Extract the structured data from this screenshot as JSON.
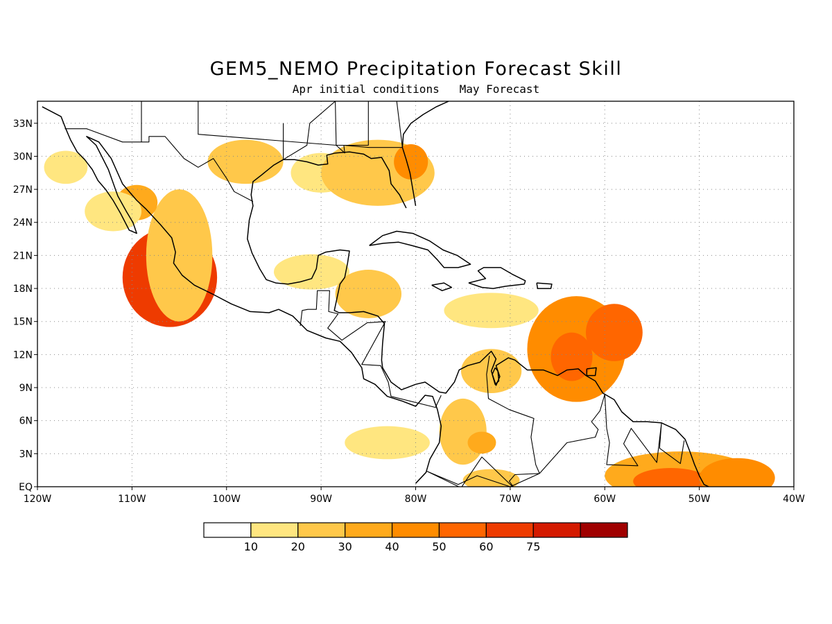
{
  "title": "GEM5_NEMO Precipitation Forecast Skill",
  "subtitle": "Apr initial conditions   May Forecast",
  "map": {
    "lon_range": [
      -120,
      -40
    ],
    "lat_range": [
      0,
      35
    ],
    "grid": "dotted",
    "lon_ticks": [
      "120W",
      "110W",
      "100W",
      "90W",
      "80W",
      "70W",
      "60W",
      "50W",
      "40W"
    ],
    "lat_ticks": [
      "EQ",
      "3N",
      "6N",
      "9N",
      "12N",
      "15N",
      "18N",
      "21N",
      "24N",
      "27N",
      "30N",
      "33N"
    ]
  },
  "colorbar": {
    "colors": [
      "#ffffff",
      "#ffe680",
      "#ffc84a",
      "#ffaa1c",
      "#ff8c00",
      "#ff6600",
      "#ee3b00",
      "#d41a00",
      "#a00000"
    ],
    "labels": [
      "10",
      "20",
      "30",
      "40",
      "50",
      "60",
      "75"
    ]
  },
  "skill_regions": [
    {
      "lon": -106.5,
      "lat": 19.5,
      "rx": 4.0,
      "ry": 3.2,
      "level": "75"
    },
    {
      "lon": -106.0,
      "lat": 19.0,
      "rx": 5.0,
      "ry": 4.5,
      "level": "60"
    },
    {
      "lon": -105.0,
      "lat": 21.0,
      "rx": 3.5,
      "ry": 6.0,
      "level": "20"
    },
    {
      "lon": -109.5,
      "lat": 25.8,
      "rx": 2.2,
      "ry": 1.6,
      "level": "30"
    },
    {
      "lon": -112.0,
      "lat": 25.0,
      "rx": 3.0,
      "ry": 1.8,
      "level": "10"
    },
    {
      "lon": -117.0,
      "lat": 29.0,
      "rx": 2.3,
      "ry": 1.5,
      "level": "10"
    },
    {
      "lon": -98.0,
      "lat": 29.5,
      "rx": 4.0,
      "ry": 2.0,
      "level": "20"
    },
    {
      "lon": -90.0,
      "lat": 28.5,
      "rx": 3.2,
      "ry": 1.8,
      "level": "10"
    },
    {
      "lon": -84.0,
      "lat": 28.5,
      "rx": 6.0,
      "ry": 3.0,
      "level": "20"
    },
    {
      "lon": -80.5,
      "lat": 29.5,
      "rx": 1.8,
      "ry": 1.6,
      "level": "40"
    },
    {
      "lon": -91.0,
      "lat": 19.5,
      "rx": 4.0,
      "ry": 1.6,
      "level": "10"
    },
    {
      "lon": -85.0,
      "lat": 17.5,
      "rx": 3.5,
      "ry": 2.2,
      "level": "20"
    },
    {
      "lon": -72.0,
      "lat": 16.0,
      "rx": 5.0,
      "ry": 1.6,
      "level": "10"
    },
    {
      "lon": -72.0,
      "lat": 10.5,
      "rx": 3.2,
      "ry": 2.0,
      "level": "20"
    },
    {
      "lon": -63.0,
      "lat": 12.5,
      "rx": 5.2,
      "ry": 4.8,
      "level": "40"
    },
    {
      "lon": -59.0,
      "lat": 14.0,
      "rx": 3.0,
      "ry": 2.6,
      "level": "50"
    },
    {
      "lon": -63.5,
      "lat": 11.8,
      "rx": 2.2,
      "ry": 2.2,
      "level": "50"
    },
    {
      "lon": -75.0,
      "lat": 5.0,
      "rx": 2.5,
      "ry": 3.0,
      "level": "20"
    },
    {
      "lon": -73.0,
      "lat": 4.0,
      "rx": 1.5,
      "ry": 1.0,
      "level": "30"
    },
    {
      "lon": -83.0,
      "lat": 4.0,
      "rx": 4.5,
      "ry": 1.5,
      "level": "10"
    },
    {
      "lon": -52.0,
      "lat": 1.0,
      "rx": 8.0,
      "ry": 2.2,
      "level": "30"
    },
    {
      "lon": -53.0,
      "lat": 0.5,
      "rx": 4.0,
      "ry": 1.2,
      "level": "50"
    },
    {
      "lon": -46.0,
      "lat": 0.8,
      "rx": 4.0,
      "ry": 1.8,
      "level": "40"
    },
    {
      "lon": -72.0,
      "lat": 0.6,
      "rx": 3.0,
      "ry": 1.0,
      "level": "20"
    }
  ]
}
